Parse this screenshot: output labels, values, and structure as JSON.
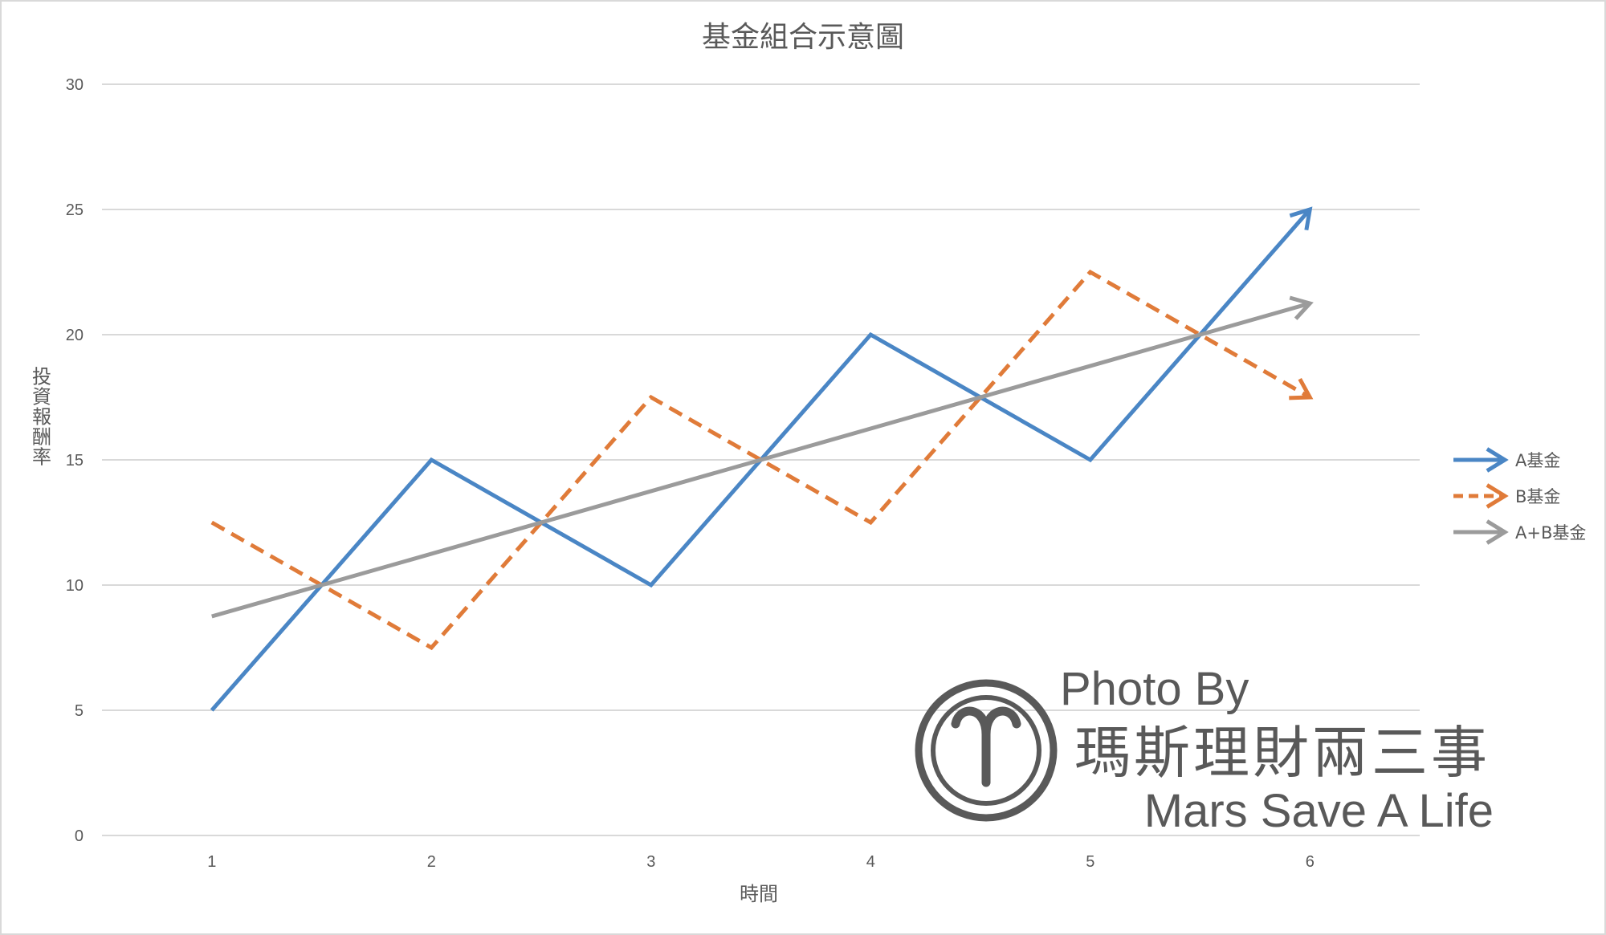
{
  "chart_data": {
    "type": "line",
    "title": "基金組合示意圖",
    "xlabel": "時間",
    "ylabel": "投資報酬率",
    "x": [
      1,
      2,
      3,
      4,
      5,
      6
    ],
    "xticks": [
      "1",
      "2",
      "3",
      "4",
      "5",
      "6"
    ],
    "ylim": [
      0,
      30
    ],
    "yticks": [
      "0",
      "5",
      "10",
      "15",
      "20",
      "25",
      "30"
    ],
    "grid": true,
    "legend_position": "right",
    "series": [
      {
        "name": "A基金",
        "color": "#4a86c5",
        "dash": false,
        "x": [
          1,
          2,
          3,
          4,
          5,
          6
        ],
        "values": [
          5,
          15,
          10,
          20,
          15,
          25
        ]
      },
      {
        "name": "B基金",
        "color": "#e07b39",
        "dash": true,
        "x": [
          1,
          2,
          3,
          4,
          5,
          6
        ],
        "values": [
          12.5,
          7.5,
          17.5,
          12.5,
          22.5,
          17.5
        ]
      },
      {
        "name": "A+B基金",
        "color": "#9b9b9b",
        "dash": false,
        "x": [
          1,
          6
        ],
        "values": [
          8.75,
          21.25
        ]
      }
    ]
  },
  "watermark": {
    "line1": "Photo By",
    "line2": "瑪斯理財兩三事",
    "line3": "Mars Save A Life",
    "logo_icon": "aries-symbol-icon"
  }
}
